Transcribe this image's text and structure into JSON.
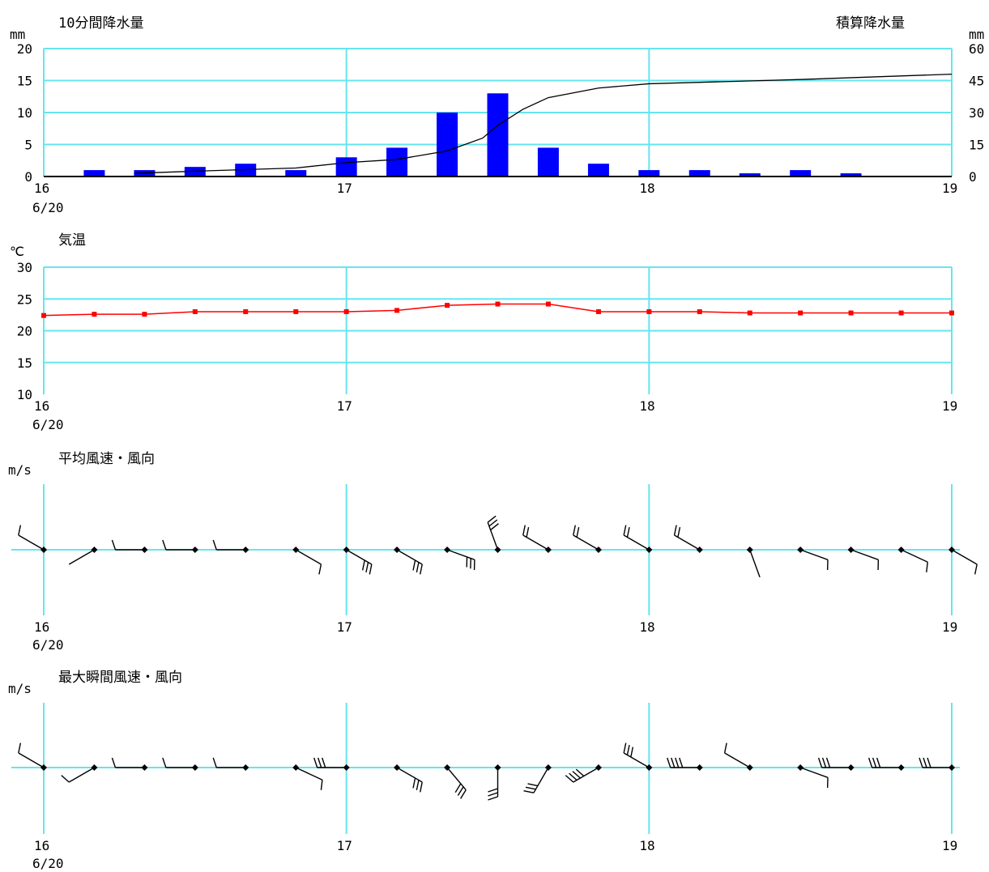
{
  "panels": {
    "rain": {
      "left_title": "10分間降水量",
      "right_title": "積算降水量",
      "left_unit": "mm",
      "right_unit": "mm",
      "date": "6/20"
    },
    "temp": {
      "title": "気温",
      "unit": "℃",
      "date": "6/20"
    },
    "wind": {
      "title": "平均風速・風向",
      "unit": "m/s",
      "date": "6/20"
    },
    "gust": {
      "title": "最大瞬間風速・風向",
      "unit": "m/s",
      "date": "6/20"
    }
  },
  "colors": {
    "grid": "#66e5ee",
    "bar": "#0000ff",
    "cumulative_line": "#000000",
    "temperature_line": "#ff0000",
    "barb": "#000000"
  },
  "chart_data": [
    {
      "type": "bar",
      "title": "10分間降水量",
      "ylabel": "mm",
      "x_ticks": [
        "16",
        "17",
        "18",
        "19"
      ],
      "xlim": [
        16,
        19
      ],
      "ylim": [
        0,
        20
      ],
      "y_ticks": [
        "0",
        "5",
        "10",
        "15",
        "20"
      ],
      "grid": true,
      "x": [
        16.167,
        16.333,
        16.5,
        16.667,
        16.833,
        17.0,
        17.167,
        17.333,
        17.5,
        17.667,
        17.833,
        18.0,
        18.167,
        18.333,
        18.5,
        18.667
      ],
      "values": [
        1.0,
        1.0,
        1.5,
        2.0,
        1.0,
        3.0,
        4.5,
        10.0,
        13.0,
        4.5,
        2.0,
        1.0,
        1.0,
        0.5,
        1.0,
        0.5
      ]
    },
    {
      "type": "line",
      "title": "積算降水量",
      "ylabel": "mm",
      "ylim": [
        0,
        60
      ],
      "y_ticks": [
        "0",
        "15",
        "30",
        "45",
        "60"
      ],
      "x": [
        16.3,
        16.5,
        16.833,
        17.0,
        17.167,
        17.333,
        17.45,
        17.5,
        17.583,
        17.667,
        17.833,
        18.0,
        18.5,
        19.0
      ],
      "values": [
        1.5,
        2.5,
        4.0,
        6.5,
        8.0,
        12.0,
        18.0,
        24.0,
        31.5,
        37.0,
        41.5,
        43.5,
        45.5,
        48.0
      ]
    },
    {
      "type": "line",
      "title": "気温",
      "ylabel": "℃",
      "ylim": [
        10,
        30
      ],
      "y_ticks": [
        "10",
        "15",
        "20",
        "25",
        "30"
      ],
      "x_ticks": [
        "16",
        "17",
        "18",
        "19"
      ],
      "grid": true,
      "x": [
        16.0,
        16.167,
        16.333,
        16.5,
        16.667,
        16.833,
        17.0,
        17.167,
        17.333,
        17.5,
        17.667,
        17.833,
        18.0,
        18.167,
        18.333,
        18.5,
        18.667,
        18.833,
        19.0
      ],
      "values": [
        22.4,
        22.6,
        22.6,
        23.0,
        23.0,
        23.0,
        23.0,
        23.2,
        24.0,
        24.2,
        24.2,
        23.0,
        23.0,
        23.0,
        22.8,
        22.8,
        22.8,
        22.8,
        22.8
      ]
    },
    {
      "type": "scatter",
      "title": "平均風速・風向",
      "ylabel": "m/s",
      "x_ticks": [
        "16",
        "17",
        "18",
        "19"
      ],
      "x": [
        16.0,
        16.167,
        16.333,
        16.5,
        16.667,
        16.833,
        17.0,
        17.167,
        17.333,
        17.5,
        17.667,
        17.833,
        18.0,
        18.167,
        18.333,
        18.5,
        18.667,
        18.833,
        19.0
      ],
      "direction_deg": [
        300,
        240,
        270,
        270,
        270,
        120,
        120,
        120,
        110,
        340,
        300,
        300,
        300,
        300,
        160,
        110,
        110,
        115,
        120
      ],
      "barb_count": [
        1,
        0,
        1,
        1,
        1,
        1,
        3,
        3,
        3,
        3,
        2,
        2,
        2,
        2,
        0,
        1,
        1,
        1,
        1
      ]
    },
    {
      "type": "scatter",
      "title": "最大瞬間風速・風向",
      "ylabel": "m/s",
      "x_ticks": [
        "16",
        "17",
        "18",
        "19"
      ],
      "x": [
        16.0,
        16.167,
        16.333,
        16.5,
        16.667,
        16.833,
        17.0,
        17.167,
        17.333,
        17.5,
        17.667,
        17.833,
        18.0,
        18.167,
        18.333,
        18.5,
        18.667,
        18.833,
        19.0
      ],
      "direction_deg": [
        300,
        240,
        270,
        270,
        270,
        115,
        270,
        120,
        140,
        180,
        210,
        240,
        300,
        270,
        300,
        110,
        270,
        270,
        270
      ],
      "barb_count": [
        1,
        1,
        1,
        1,
        1,
        1,
        3,
        3,
        3,
        3,
        3,
        4,
        3,
        4,
        1,
        1,
        3,
        3,
        3
      ]
    }
  ]
}
